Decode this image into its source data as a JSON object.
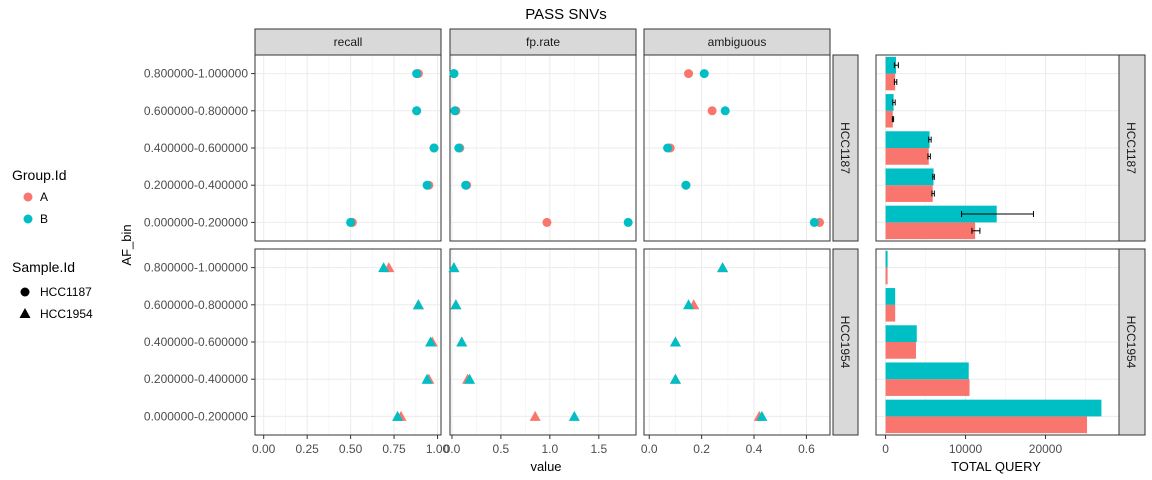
{
  "title": "PASS SNVs",
  "legend": {
    "group_title": "Group.Id",
    "groups": [
      {
        "label": "A",
        "color": "#F8766D"
      },
      {
        "label": "B",
        "color": "#00BFC4"
      }
    ],
    "sample_title": "Sample.Id",
    "samples": [
      {
        "label": "HCC1187",
        "shape": "circle"
      },
      {
        "label": "HCC1954",
        "shape": "triangle"
      }
    ]
  },
  "chart_data": [
    {
      "type": "scatter",
      "title": "PASS SNVs",
      "xlabel": "value",
      "ylabel": "AF_bin",
      "categories": [
        "0.000000-0.200000",
        "0.200000-0.400000",
        "0.400000-0.600000",
        "0.600000-0.800000",
        "0.800000-1.000000"
      ],
      "facet_cols": [
        {
          "name": "recall",
          "xlim": [
            -0.05,
            1.02
          ],
          "ticks": [
            0.0,
            0.25,
            0.5,
            0.75,
            1.0
          ],
          "tick_labels": [
            "0.00",
            "0.25",
            "0.50",
            "0.75",
            "1.00"
          ]
        },
        {
          "name": "fp.rate",
          "xlim": [
            -0.02,
            1.88
          ],
          "ticks": [
            0.0,
            0.5,
            1.0,
            1.5
          ],
          "tick_labels": [
            "0.0",
            "0.5",
            "1.0",
            "1.5"
          ]
        },
        {
          "name": "ambiguous",
          "xlim": [
            -0.02,
            0.69
          ],
          "ticks": [
            0.0,
            0.2,
            0.4,
            0.6
          ],
          "tick_labels": [
            "0.0",
            "0.2",
            "0.4",
            "0.6"
          ]
        }
      ],
      "facet_rows": [
        "HCC1187",
        "HCC1954"
      ],
      "grid": true,
      "points": [
        {
          "sample": "HCC1187",
          "facet": "recall",
          "group": "A",
          "y": [
            "0.51",
            "0.95",
            "0.98",
            "0.88",
            "0.89"
          ]
        },
        {
          "sample": "HCC1187",
          "facet": "recall",
          "group": "B",
          "y": [
            "0.50",
            "0.94",
            "0.98",
            "0.88",
            "0.88"
          ]
        },
        {
          "sample": "HCC1187",
          "facet": "fp.rate",
          "group": "A",
          "y": [
            "0.97",
            "0.15",
            "0.08",
            "0.04",
            "0.02"
          ]
        },
        {
          "sample": "HCC1187",
          "facet": "fp.rate",
          "group": "B",
          "y": [
            "1.80",
            "0.14",
            "0.07",
            "0.03",
            "0.02"
          ]
        },
        {
          "sample": "HCC1187",
          "facet": "ambiguous",
          "group": "A",
          "y": [
            "0.65",
            "0.14",
            "0.08",
            "0.24",
            "0.15"
          ]
        },
        {
          "sample": "HCC1187",
          "facet": "ambiguous",
          "group": "B",
          "y": [
            "0.63",
            "0.14",
            "0.07",
            "0.29",
            "0.21"
          ]
        },
        {
          "sample": "HCC1954",
          "facet": "recall",
          "group": "A",
          "y": [
            "0.79",
            "0.95",
            "0.97",
            "0.89",
            "0.72"
          ]
        },
        {
          "sample": "HCC1954",
          "facet": "recall",
          "group": "B",
          "y": [
            "0.77",
            "0.94",
            "0.96",
            "0.89",
            "0.69"
          ]
        },
        {
          "sample": "HCC1954",
          "facet": "fp.rate",
          "group": "A",
          "y": [
            "0.85",
            "0.16",
            "0.10",
            "0.04",
            "0.02"
          ]
        },
        {
          "sample": "HCC1954",
          "facet": "fp.rate",
          "group": "B",
          "y": [
            "1.25",
            "0.18",
            "0.10",
            "0.04",
            "0.02"
          ]
        },
        {
          "sample": "HCC1954",
          "facet": "ambiguous",
          "group": "A",
          "y": [
            "0.42",
            "0.10",
            "0.10",
            "0.17",
            "0.28"
          ]
        },
        {
          "sample": "HCC1954",
          "facet": "ambiguous",
          "group": "B",
          "y": [
            "0.43",
            "0.10",
            "0.10",
            "0.15",
            "0.28"
          ]
        }
      ]
    },
    {
      "type": "bar",
      "orientation": "horizontal",
      "xlabel": "TOTAL QUERY",
      "xlim": [
        -1200,
        29200
      ],
      "ticks": [
        0,
        10000,
        20000
      ],
      "tick_labels": [
        "0",
        "10000",
        "20000"
      ],
      "categories": [
        "0.000000-0.200000",
        "0.200000-0.400000",
        "0.400000-0.600000",
        "0.600000-0.800000",
        "0.800000-1.000000"
      ],
      "facet_rows": [
        "HCC1187",
        "HCC1954"
      ],
      "grid": true,
      "series": [
        {
          "sample": "HCC1187",
          "group": "A",
          "values": [
            11200,
            5900,
            5400,
            900,
            1200
          ],
          "err_low": [
            10800,
            5800,
            5300,
            850,
            1100
          ],
          "err_high": [
            11800,
            6100,
            5600,
            1000,
            1400
          ]
        },
        {
          "sample": "HCC1187",
          "group": "B",
          "values": [
            13900,
            6000,
            5500,
            1000,
            1300
          ],
          "err_low": [
            9500,
            5900,
            5400,
            900,
            1100
          ],
          "err_high": [
            18500,
            6100,
            5700,
            1200,
            1600
          ]
        },
        {
          "sample": "HCC1954",
          "group": "A",
          "values": [
            25200,
            10500,
            3800,
            1200,
            250
          ],
          "err_low": [],
          "err_high": []
        },
        {
          "sample": "HCC1954",
          "group": "B",
          "values": [
            27000,
            10400,
            3900,
            1200,
            250
          ],
          "err_low": [],
          "err_high": []
        }
      ]
    }
  ]
}
